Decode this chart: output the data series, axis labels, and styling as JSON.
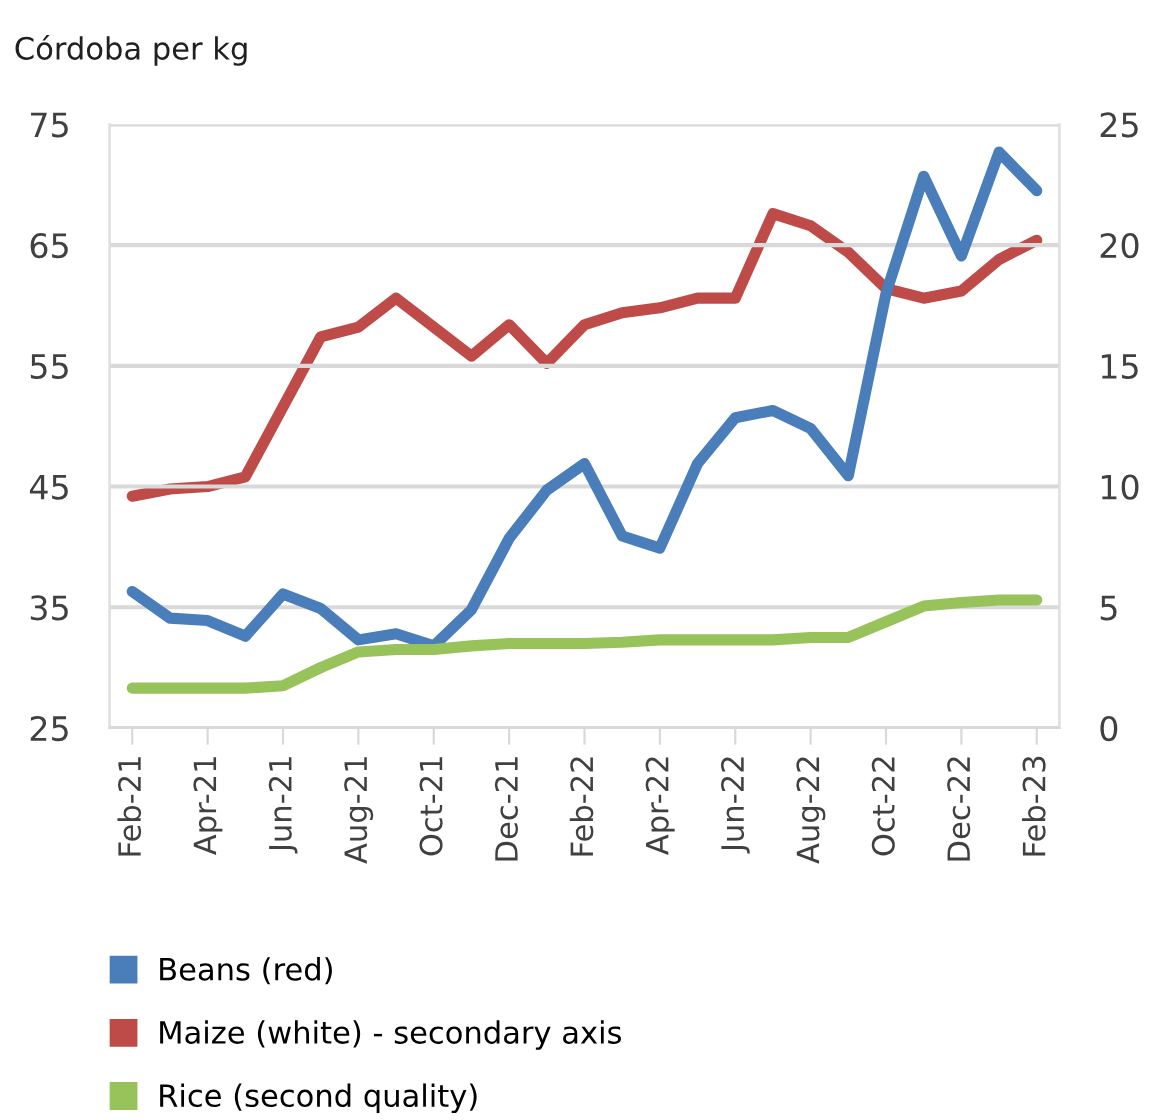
{
  "chart_data": {
    "type": "line",
    "ylabel": "Córdoba per kg",
    "categories": [
      "Feb-21",
      null,
      "Apr-21",
      null,
      "Jun-21",
      null,
      "Aug-21",
      null,
      "Oct-21",
      null,
      "Dec-21",
      null,
      "Feb-22",
      null,
      "Apr-22",
      null,
      "Jun-22",
      null,
      "Aug-22",
      null,
      "Oct-22",
      null,
      "Dec-22",
      null,
      "Feb-23"
    ],
    "series": [
      {
        "name": "Beans (red)",
        "color": "#4a7ebb",
        "values": [
          36.3,
          34.1,
          33.9,
          32.6,
          36.1,
          34.9,
          32.3,
          32.8,
          31.8,
          34.8,
          40.7,
          44.7,
          46.9,
          40.9,
          39.9,
          46.9,
          50.7,
          51.3,
          49.8,
          45.9,
          61,
          70.7,
          64.1,
          72.7,
          69.5
        ]
      },
      {
        "name": "Maize (white) - secondary axis",
        "color": "#be4b48",
        "axis": "y2",
        "values": [
          9.6,
          9.9,
          10.0,
          10.4,
          13.3,
          16.2,
          16.6,
          17.8,
          16.6,
          15.4,
          16.7,
          15.1,
          16.7,
          17.2,
          17.4,
          17.8,
          17.8,
          21.3,
          20.8,
          19.7,
          18.2,
          17.8,
          18.1,
          19.4,
          20.2
        ]
      },
      {
        "name": "Rice (second quality)",
        "color": "#98c25a",
        "values": [
          28.3,
          28.3,
          28.3,
          28.3,
          28.5,
          30,
          31.3,
          31.5,
          31.5,
          31.8,
          32,
          32,
          32,
          32.1,
          32.3,
          32.3,
          32.3,
          32.3,
          32.5,
          32.5,
          33.8,
          35.1,
          35.4,
          35.6,
          35.6
        ]
      }
    ],
    "ylim": [
      25,
      75
    ],
    "yticks": [
      25,
      35,
      45,
      55,
      65,
      75
    ],
    "y2lim": [
      0,
      25
    ],
    "y2ticks": [
      0,
      5,
      10,
      15,
      20,
      25
    ],
    "grid": "y",
    "legend": "bottom",
    "marker": "none",
    "line_style": "solid"
  }
}
